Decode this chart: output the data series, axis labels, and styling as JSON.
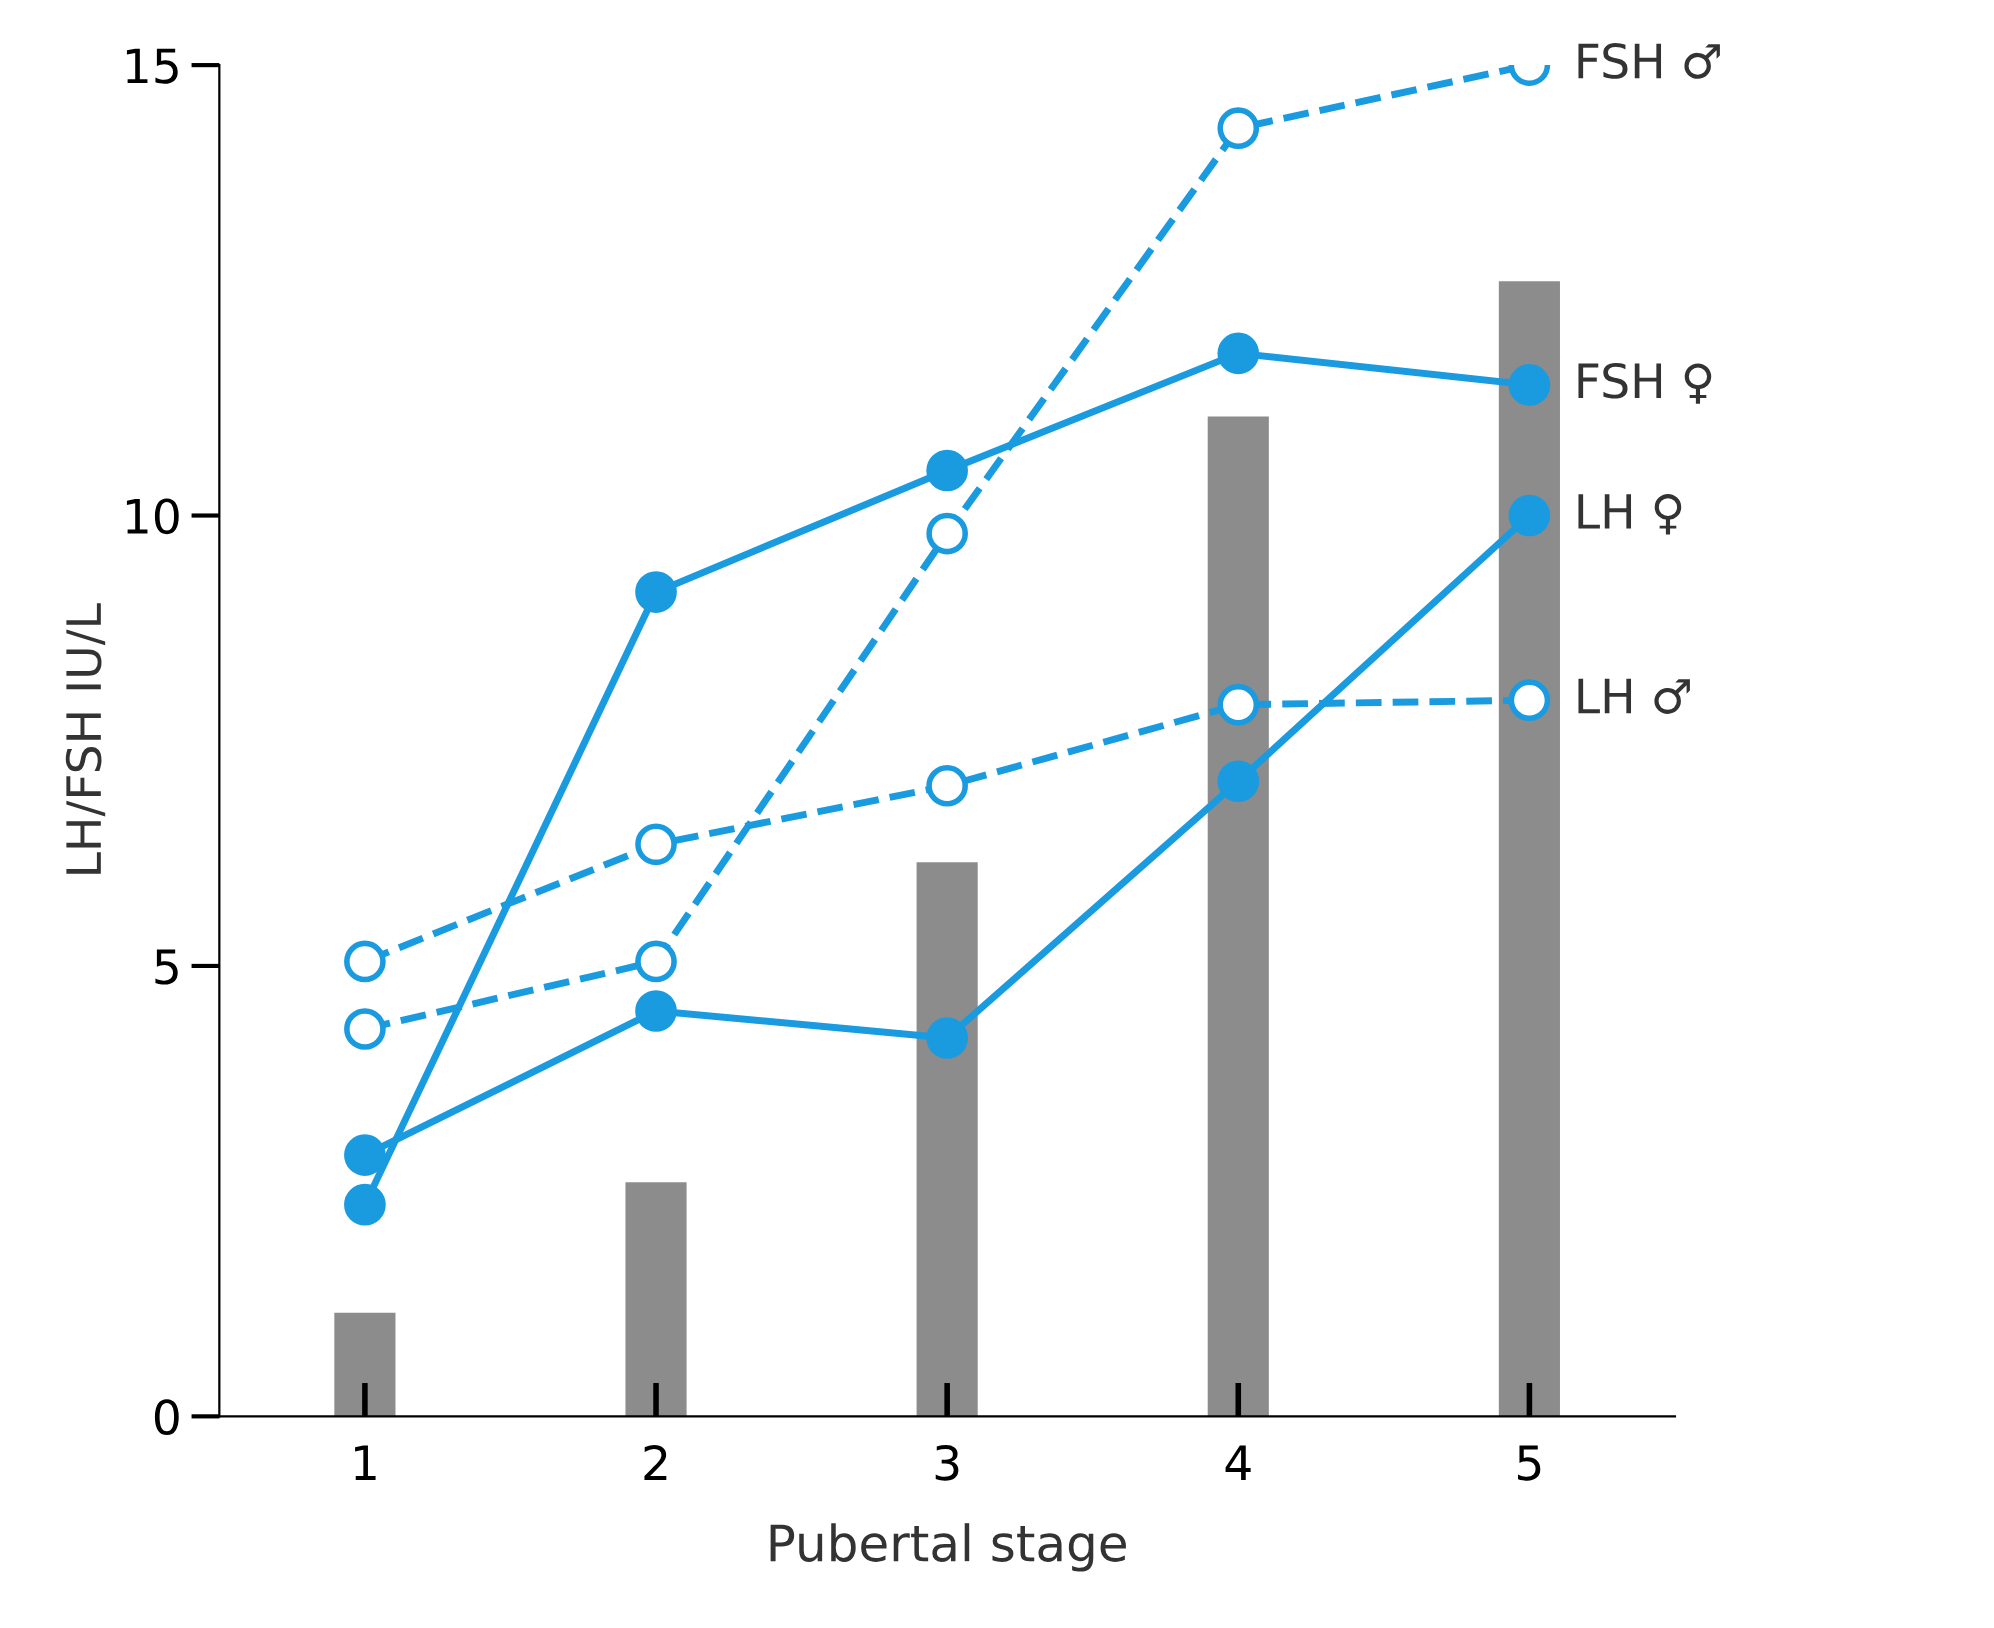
{
  "chart_data": {
    "type": "line",
    "xlabel": "Pubertal stage",
    "ylabel": "LH/FSH IU/L",
    "categories": [
      "1",
      "2",
      "3",
      "4",
      "5"
    ],
    "ylim": [
      0,
      15
    ],
    "yticks": [
      0,
      5,
      10,
      15
    ],
    "grid": false,
    "legend": false,
    "marker": "circle",
    "series": [
      {
        "type": "bar",
        "color": "#8c8c8c",
        "values": [
          1.15,
          2.6,
          6.15,
          11.1,
          12.6
        ]
      },
      {
        "name": "FSH ♂",
        "color": "#1a9be0",
        "line_style": "dashed",
        "values": [
          4.3,
          5.05,
          9.8,
          14.3,
          15.0
        ]
      },
      {
        "name": "FSH ♀",
        "color": "#1a9be0",
        "line_style": "solid",
        "values": [
          2.35,
          9.15,
          10.5,
          11.8,
          11.45
        ]
      },
      {
        "name": "LH ♀",
        "color": "#1a9be0",
        "line_style": "solid",
        "values": [
          2.9,
          4.5,
          4.2,
          7.05,
          10.0
        ]
      },
      {
        "name": "LH ♂",
        "color": "#1a9be0",
        "line_style": "dashed",
        "values": [
          5.05,
          6.35,
          7.0,
          7.9,
          7.95
        ]
      }
    ]
  }
}
